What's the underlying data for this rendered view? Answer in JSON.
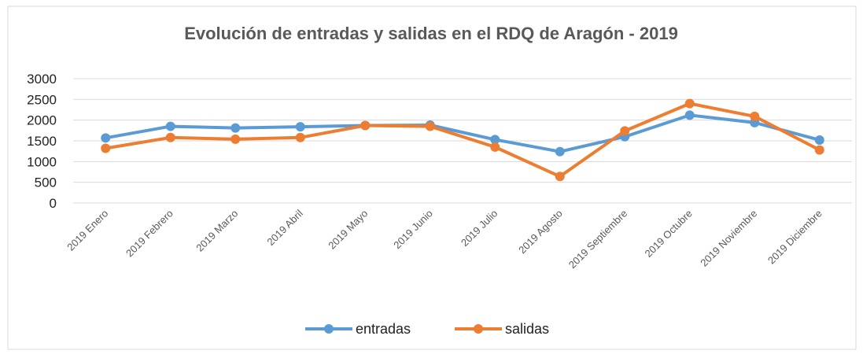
{
  "chart_data": {
    "type": "line",
    "title": "Evolución de entradas y salidas en el RDQ de Aragón - 2019",
    "categories": [
      "2019 Enero",
      "2019 Febrero",
      "2019 Marzo",
      "2019 Abril",
      "2019 Mayo",
      "2019 Junio",
      "2019 Julio",
      "2019 Agosto",
      "2019 Septiembre",
      "2019 Octubre",
      "2019 Noviembre",
      "2019 Diciembre"
    ],
    "series": [
      {
        "name": "entradas",
        "color": "#5b9bd5",
        "values": [
          1570,
          1850,
          1810,
          1840,
          1870,
          1880,
          1530,
          1240,
          1600,
          2120,
          1940,
          1520
        ]
      },
      {
        "name": "salidas",
        "color": "#ed7d31",
        "values": [
          1320,
          1580,
          1540,
          1580,
          1870,
          1850,
          1350,
          640,
          1740,
          2400,
          2090,
          1280
        ]
      }
    ],
    "ylim": [
      0,
      3000
    ],
    "yticks": [
      0,
      500,
      1000,
      1500,
      2000,
      2500,
      3000
    ],
    "grid": true,
    "legend": "bottom"
  }
}
